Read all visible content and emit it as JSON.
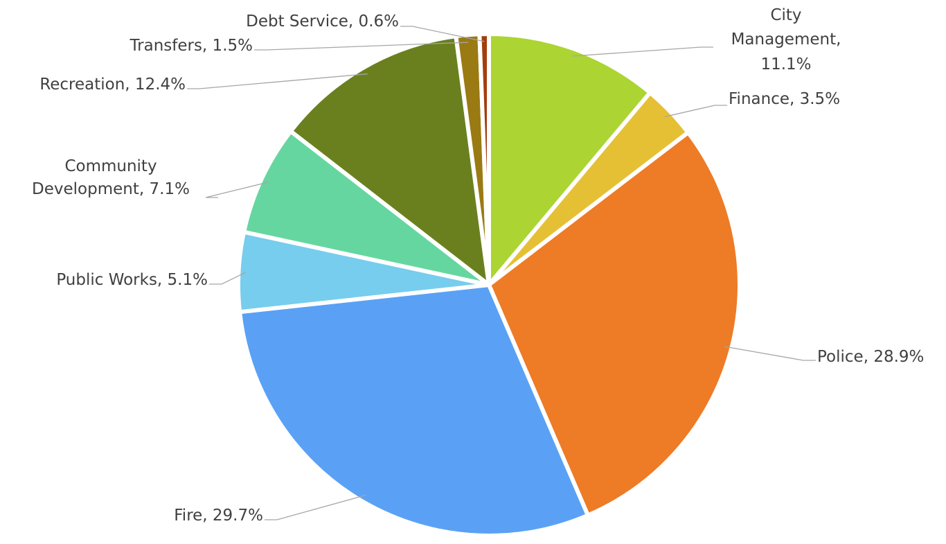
{
  "chart_data": {
    "type": "pie",
    "values": [
      11.1,
      3.5,
      28.9,
      29.7,
      5.1,
      7.1,
      12.4,
      1.5,
      0.6
    ],
    "value_labels": [
      "City Management, 11.1%",
      "Finance, 3.5%",
      "Police, 28.9%",
      "Fire, 29.7%",
      "Public Works, 5.1%",
      "Community Development, 7.1%",
      "Recreation, 12.4%",
      "Transfers, 1.5%",
      "Debt Service, 0.6%"
    ],
    "colors": [
      "#acd433",
      "#e5c034",
      "#ee7b26",
      "#5aa1f5",
      "#76cdee",
      "#66d6a0",
      "#6a801e",
      "#9a7a12",
      "#a43d0e"
    ]
  }
}
